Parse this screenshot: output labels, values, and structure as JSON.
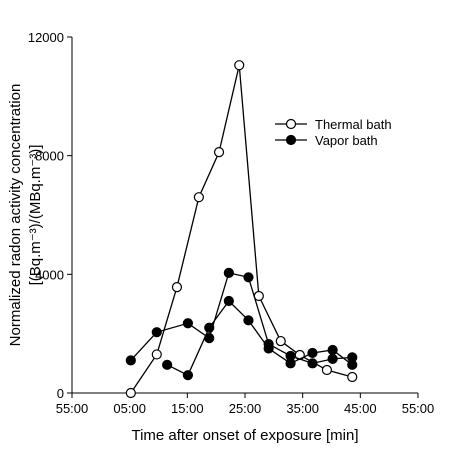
{
  "chart_data": {
    "type": "line",
    "xlabel": "Time after onset of exposure  [min]",
    "ylabel": [
      "Normalized radon activity concentration",
      "[(Bq.m⁻³)/(MBq.m⁻³)]"
    ],
    "xlim": [
      -5,
      55
    ],
    "xticks": [
      {
        "value": -5,
        "label": "55:00"
      },
      {
        "value": 5,
        "label": "05:00"
      },
      {
        "value": 15,
        "label": "15:00"
      },
      {
        "value": 25,
        "label": "25:00"
      },
      {
        "value": 35,
        "label": "35:00"
      },
      {
        "value": 45,
        "label": "45:00"
      },
      {
        "value": 55,
        "label": "55:00"
      }
    ],
    "ylim": [
      0,
      12000
    ],
    "yticks": [
      0,
      4000,
      8000,
      12000
    ],
    "legend": "upper right",
    "series": [
      {
        "name": "Thermal bath",
        "color": "#000000",
        "marker_fill": "#ffffff",
        "x": [
          5.2,
          9.7,
          13.2,
          17.0,
          20.5,
          24.0,
          27.4,
          31.2,
          34.5,
          39.2,
          43.6
        ],
        "values": [
          0,
          1300,
          3570,
          6600,
          8120,
          11050,
          3270,
          1750,
          1280,
          775,
          540
        ]
      },
      {
        "name": "Vapor bath",
        "color": "#000000",
        "marker_fill": "#000000",
        "x": [
          5.2,
          9.7,
          15.1,
          18.8,
          22.2,
          25.6,
          29.1,
          32.9,
          36.7,
          40.2,
          43.6,
          null,
          11.5,
          15.1,
          18.8,
          22.2,
          25.6,
          29.1,
          32.9,
          36.7,
          40.2,
          43.6
        ],
        "values": [
          1100,
          2050,
          2350,
          1850,
          4050,
          3900,
          1650,
          1250,
          1000,
          1150,
          1200,
          null,
          950,
          600,
          2200,
          3100,
          2450,
          1500,
          1000,
          1350,
          1450,
          950
        ]
      }
    ]
  }
}
